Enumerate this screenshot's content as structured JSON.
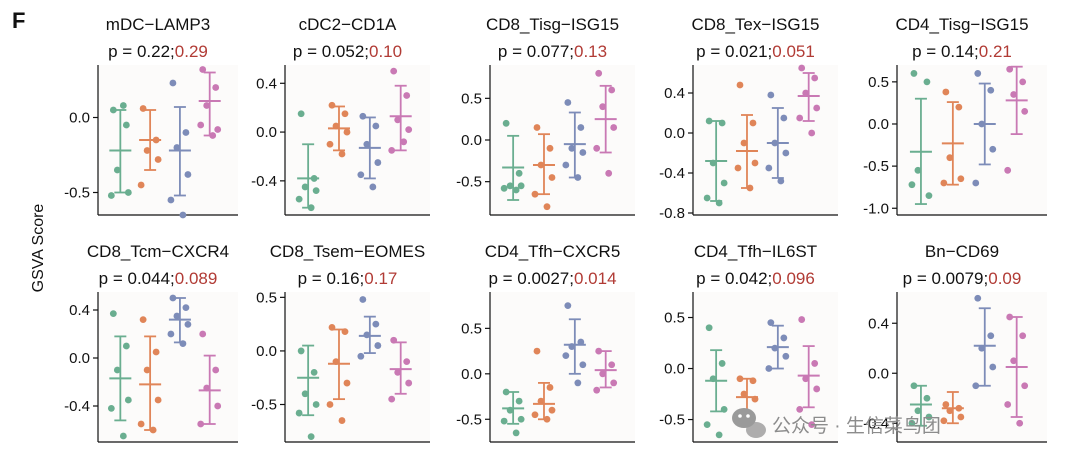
{
  "figure": {
    "panel_label": "F",
    "ylabel": "GSVA Score",
    "watermark": "公众号 · 生信菜鸟团"
  },
  "colors": {
    "groups": [
      "#6aae90",
      "#e08558",
      "#7d8cb8",
      "#c979b4"
    ],
    "p_black": "#111111",
    "p_red": "#b13b35",
    "axis": "#111111"
  },
  "chart_data": [
    {
      "type": "scatter",
      "title": "mDC−LAMP3",
      "p_black": "p = 0.22;",
      "p_red": "0.29",
      "yticks": [
        -0.5,
        0.0
      ],
      "ytick_labels": [
        "-0.5",
        "0.0"
      ],
      "ylim": [
        -0.65,
        0.35
      ],
      "groups": [
        {
          "mean": -0.22,
          "lo": -0.5,
          "hi": 0.05,
          "points": [
            0.05,
            -0.05,
            -0.35,
            -0.5,
            -0.52,
            0.08
          ]
        },
        {
          "mean": -0.15,
          "lo": -0.35,
          "hi": 0.05,
          "points": [
            0.06,
            -0.15,
            -0.22,
            -0.28,
            -0.45
          ]
        },
        {
          "mean": -0.22,
          "lo": -0.52,
          "hi": 0.07,
          "points": [
            0.23,
            -0.1,
            -0.2,
            -0.38,
            -0.55,
            -0.65
          ]
        },
        {
          "mean": 0.11,
          "lo": -0.12,
          "hi": 0.3,
          "points": [
            0.32,
            0.2,
            0.08,
            -0.08,
            -0.05,
            -0.12
          ]
        }
      ]
    },
    {
      "type": "scatter",
      "title": "cDC2−CD1A",
      "p_black": "p = 0.052;",
      "p_red": "0.10",
      "yticks": [
        -0.4,
        0.0,
        0.4
      ],
      "ytick_labels": [
        "-0.4",
        "0.0",
        "0.4"
      ],
      "ylim": [
        -0.68,
        0.55
      ],
      "groups": [
        {
          "mean": -0.38,
          "lo": -0.62,
          "hi": -0.1,
          "points": [
            0.15,
            -0.38,
            -0.45,
            -0.48,
            -0.55,
            -0.62
          ]
        },
        {
          "mean": 0.03,
          "lo": -0.15,
          "hi": 0.21,
          "points": [
            0.22,
            0.15,
            0.05,
            0.0,
            -0.1,
            -0.18
          ]
        },
        {
          "mean": -0.13,
          "lo": -0.38,
          "hi": 0.12,
          "points": [
            0.13,
            0.05,
            -0.1,
            -0.25,
            -0.35,
            -0.45
          ]
        },
        {
          "mean": 0.13,
          "lo": -0.15,
          "hi": 0.38,
          "points": [
            0.5,
            0.3,
            0.1,
            0.02,
            -0.15,
            -0.08
          ]
        }
      ]
    },
    {
      "type": "scatter",
      "title": "CD8_Tisg−ISG15",
      "p_black": "p = 0.077;",
      "p_red": "0.13",
      "yticks": [
        -0.5,
        0.0,
        0.5
      ],
      "ytick_labels": [
        "-0.5",
        "0.0",
        "0.5"
      ],
      "ylim": [
        -0.9,
        0.9
      ],
      "groups": [
        {
          "mean": -0.33,
          "lo": -0.72,
          "hi": 0.05,
          "points": [
            0.2,
            -0.4,
            -0.55,
            -0.55,
            -0.58,
            -0.6
          ]
        },
        {
          "mean": -0.3,
          "lo": -0.65,
          "hi": 0.07,
          "points": [
            0.15,
            -0.1,
            -0.3,
            -0.45,
            -0.65,
            -0.8
          ]
        },
        {
          "mean": -0.05,
          "lo": -0.45,
          "hi": 0.33,
          "points": [
            0.45,
            0.15,
            -0.1,
            -0.15,
            -0.3,
            -0.45
          ]
        },
        {
          "mean": 0.25,
          "lo": -0.15,
          "hi": 0.65,
          "points": [
            0.8,
            0.6,
            0.4,
            0.15,
            -0.1,
            -0.4
          ]
        }
      ]
    },
    {
      "type": "scatter",
      "title": "CD8_Tex−ISG15",
      "p_black": "p = 0.021;",
      "p_red": "0.051",
      "yticks": [
        -0.8,
        -0.4,
        0.0,
        0.4
      ],
      "ytick_labels": [
        "-0.8",
        "-0.4",
        "0.0",
        "0.4"
      ],
      "ylim": [
        -0.82,
        0.68
      ],
      "groups": [
        {
          "mean": -0.28,
          "lo": -0.68,
          "hi": 0.12,
          "points": [
            0.12,
            0.1,
            -0.3,
            -0.5,
            -0.65,
            -0.7
          ]
        },
        {
          "mean": -0.18,
          "lo": -0.55,
          "hi": 0.18,
          "points": [
            0.48,
            0.1,
            -0.1,
            -0.3,
            -0.35,
            -0.55
          ]
        },
        {
          "mean": -0.1,
          "lo": -0.45,
          "hi": 0.25,
          "points": [
            0.38,
            0.15,
            -0.1,
            -0.2,
            -0.35,
            -0.48
          ]
        },
        {
          "mean": 0.37,
          "lo": 0.12,
          "hi": 0.6,
          "points": [
            0.65,
            0.55,
            0.4,
            0.25,
            0.15,
            0.0
          ]
        }
      ]
    },
    {
      "type": "scatter",
      "title": "CD4_Tisg−ISG15",
      "p_black": "p = 0.14;",
      "p_red": "0.21",
      "yticks": [
        -1.0,
        -0.5,
        0.0,
        0.5
      ],
      "ytick_labels": [
        "-1.0",
        "-0.5",
        "0.0",
        "0.5"
      ],
      "ylim": [
        -1.08,
        0.7
      ],
      "groups": [
        {
          "mean": -0.33,
          "lo": -0.95,
          "hi": 0.3,
          "points": [
            0.6,
            0.5,
            -0.55,
            -0.85,
            -0.72
          ]
        },
        {
          "mean": -0.23,
          "lo": -0.72,
          "hi": 0.26,
          "points": [
            0.38,
            0.2,
            -0.4,
            -0.65,
            -0.7
          ]
        },
        {
          "mean": 0.0,
          "lo": -0.48,
          "hi": 0.48,
          "points": [
            0.6,
            0.4,
            0.0,
            -0.3,
            -0.7
          ]
        },
        {
          "mean": 0.28,
          "lo": -0.12,
          "hi": 0.68,
          "points": [
            0.65,
            0.5,
            0.35,
            0.15,
            -0.55
          ]
        }
      ]
    },
    {
      "type": "scatter",
      "title": "CD8_Tcm−CXCR4",
      "p_black": "p = 0.044;",
      "p_red": "0.089",
      "yticks": [
        -0.4,
        0.0,
        0.4
      ],
      "ytick_labels": [
        "-0.4",
        "0.0",
        "0.4"
      ],
      "ylim": [
        -0.7,
        0.55
      ],
      "groups": [
        {
          "mean": -0.17,
          "lo": -0.52,
          "hi": 0.18,
          "points": [
            0.37,
            0.1,
            -0.1,
            -0.35,
            -0.42,
            -0.65
          ]
        },
        {
          "mean": -0.22,
          "lo": -0.6,
          "hi": 0.18,
          "points": [
            0.32,
            0.05,
            -0.1,
            -0.35,
            -0.55,
            -0.6
          ]
        },
        {
          "mean": 0.32,
          "lo": 0.13,
          "hi": 0.5,
          "points": [
            0.5,
            0.42,
            0.35,
            0.28,
            0.2,
            0.12
          ]
        },
        {
          "mean": -0.27,
          "lo": -0.55,
          "hi": 0.02,
          "points": [
            0.2,
            -0.1,
            -0.25,
            -0.4,
            -0.55
          ]
        }
      ]
    },
    {
      "type": "scatter",
      "title": "CD8_Tsem−EOMES",
      "p_black": "p = 0.16;",
      "p_red": "0.17",
      "yticks": [
        -0.5,
        0.0,
        0.5
      ],
      "ytick_labels": [
        "-0.5",
        "0.0",
        "0.5"
      ],
      "ylim": [
        -0.85,
        0.55
      ],
      "groups": [
        {
          "mean": -0.25,
          "lo": -0.6,
          "hi": 0.05,
          "points": [
            0.0,
            -0.2,
            -0.4,
            -0.5,
            -0.58,
            -0.8
          ]
        },
        {
          "mean": -0.12,
          "lo": -0.45,
          "hi": 0.2,
          "points": [
            0.22,
            0.18,
            -0.1,
            -0.3,
            -0.5,
            -0.65
          ]
        },
        {
          "mean": 0.14,
          "lo": -0.02,
          "hi": 0.32,
          "points": [
            0.48,
            0.25,
            0.15,
            0.05,
            -0.05
          ]
        },
        {
          "mean": -0.17,
          "lo": -0.4,
          "hi": 0.08,
          "points": [
            0.1,
            -0.1,
            -0.2,
            -0.3,
            -0.45
          ]
        }
      ]
    },
    {
      "type": "scatter",
      "title": "CD4_Tfh−CXCR5",
      "p_black": "p = 0.0027;",
      "p_red": "0.014",
      "yticks": [
        -0.5,
        0.0,
        0.5
      ],
      "ytick_labels": [
        "-0.5",
        "0.0",
        "0.5"
      ],
      "ylim": [
        -0.75,
        0.9
      ],
      "groups": [
        {
          "mean": -0.38,
          "lo": -0.55,
          "hi": -0.2,
          "points": [
            -0.2,
            -0.3,
            -0.4,
            -0.5,
            -0.52,
            -0.65
          ]
        },
        {
          "mean": -0.33,
          "lo": -0.5,
          "hi": -0.1,
          "points": [
            0.25,
            -0.15,
            -0.3,
            -0.4,
            -0.45,
            -0.5
          ]
        },
        {
          "mean": 0.32,
          "lo": 0.0,
          "hi": 0.6,
          "points": [
            0.75,
            0.35,
            0.3,
            0.1,
            0.2,
            -0.1
          ]
        },
        {
          "mean": 0.04,
          "lo": -0.15,
          "hi": 0.25,
          "points": [
            0.25,
            0.1,
            0.0,
            -0.1,
            -0.18
          ]
        }
      ]
    },
    {
      "type": "scatter",
      "title": "CD4_Tfh−IL6ST",
      "p_black": "p = 0.042;",
      "p_red": "0.096",
      "yticks": [
        -0.5,
        0.0,
        0.5
      ],
      "ytick_labels": [
        "-0.5",
        "0.0",
        "0.5"
      ],
      "ylim": [
        -0.72,
        0.75
      ],
      "groups": [
        {
          "mean": -0.12,
          "lo": -0.42,
          "hi": 0.18,
          "points": [
            0.4,
            0.05,
            -0.1,
            -0.4,
            -0.55,
            -0.65
          ]
        },
        {
          "mean": -0.28,
          "lo": -0.52,
          "hi": -0.1,
          "points": [
            -0.1,
            -0.12,
            -0.25,
            -0.3,
            -0.48,
            -0.5
          ]
        },
        {
          "mean": 0.21,
          "lo": 0.0,
          "hi": 0.42,
          "points": [
            0.45,
            0.3,
            0.2,
            0.12,
            0.0
          ]
        },
        {
          "mean": -0.07,
          "lo": -0.38,
          "hi": 0.22,
          "points": [
            0.48,
            0.05,
            -0.1,
            -0.2,
            -0.4,
            -0.55
          ]
        }
      ]
    },
    {
      "type": "scatter",
      "title": "Bn−CD69",
      "p_black": "p = 0.0079;",
      "p_red": "0.09",
      "yticks": [
        -0.4,
        0.0,
        0.4
      ],
      "ytick_labels": [
        "-0.4",
        "0.0",
        "0.4"
      ],
      "ylim": [
        -0.55,
        0.65
      ],
      "groups": [
        {
          "mean": -0.25,
          "lo": -0.42,
          "hi": -0.1,
          "points": [
            -0.1,
            -0.2,
            -0.3,
            -0.35,
            -0.4
          ]
        },
        {
          "mean": -0.28,
          "lo": -0.4,
          "hi": -0.15,
          "points": [
            -0.25,
            -0.28,
            -0.3,
            -0.35,
            -0.38
          ]
        },
        {
          "mean": 0.22,
          "lo": -0.1,
          "hi": 0.52,
          "points": [
            0.6,
            0.3,
            0.2,
            0.05,
            -0.1
          ]
        },
        {
          "mean": 0.05,
          "lo": -0.35,
          "hi": 0.45,
          "points": [
            0.45,
            0.3,
            0.1,
            -0.1,
            -0.25,
            -0.4
          ]
        }
      ]
    }
  ]
}
